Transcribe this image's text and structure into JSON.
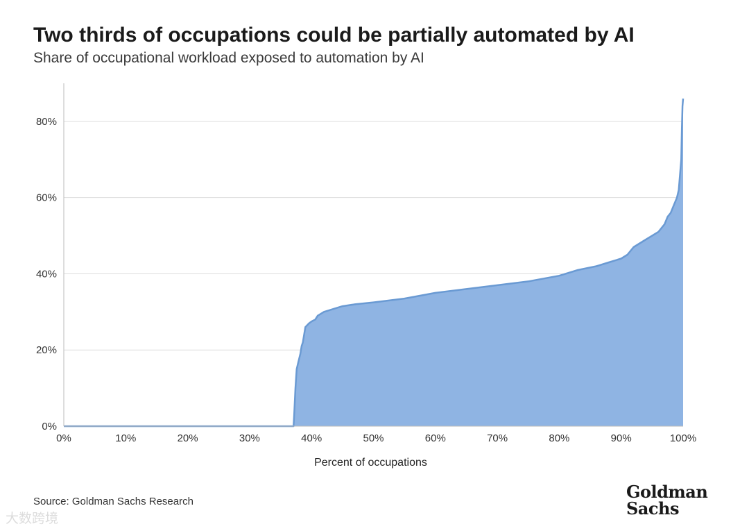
{
  "header": {
    "title": "Two thirds of occupations could be partially automated by AI",
    "subtitle": "Share of occupational workload exposed to automation by AI"
  },
  "footer": {
    "source": "Source: Goldman Sachs Research",
    "logo_line1": "Goldman",
    "logo_line2": "Sachs",
    "watermark": "大数跨境"
  },
  "colors": {
    "area_fill": "#8fb4e3",
    "line": "#6a9ad3",
    "grid": "#dddddd",
    "axis": "#bbbbbb"
  },
  "chart_data": {
    "type": "area",
    "title": "Two thirds of occupations could be partially automated by AI",
    "subtitle": "Share of occupational workload exposed to automation by AI",
    "xlabel": "Percent of occupations",
    "ylabel": "",
    "xlim": [
      0,
      100
    ],
    "ylim": [
      0,
      90
    ],
    "grid": true,
    "x_ticks": [
      0,
      10,
      20,
      30,
      40,
      50,
      60,
      70,
      80,
      90,
      100
    ],
    "x_tick_labels": [
      "0%",
      "10%",
      "20%",
      "30%",
      "40%",
      "50%",
      "60%",
      "70%",
      "80%",
      "90%",
      "100%"
    ],
    "y_ticks": [
      0,
      20,
      40,
      60,
      80
    ],
    "y_tick_labels": [
      "0%",
      "20%",
      "40%",
      "60%",
      "80%"
    ],
    "series": [
      {
        "x": [
          0,
          37.1,
          37.2,
          37.4,
          37.6,
          37.9,
          38.2,
          38.4,
          38.6,
          39.0,
          39.6,
          40.0,
          40.6,
          41.0,
          42.0,
          43.0,
          44.0,
          45.0,
          47.0,
          50.0,
          55.0,
          60.0,
          65.0,
          70.0,
          75.0,
          80.0,
          83.0,
          86.0,
          88.0,
          90.0,
          91.0,
          92.0,
          93.0,
          94.0,
          95.0,
          96.0,
          96.5,
          97.0,
          97.5,
          98.0,
          98.5,
          99.0,
          99.3,
          99.5,
          99.7,
          99.8,
          99.9,
          100.0
        ],
        "y": [
          0,
          0,
          3,
          10,
          15,
          17,
          19,
          21,
          22,
          26,
          27,
          27.5,
          28,
          29,
          30,
          30.5,
          31,
          31.5,
          32,
          32.5,
          33.5,
          35,
          36,
          37,
          38,
          39.5,
          41,
          42,
          43,
          44,
          45,
          47,
          48,
          49,
          50,
          51,
          52,
          53,
          55,
          56,
          58,
          60,
          62,
          66,
          70,
          78,
          84,
          86
        ]
      }
    ]
  }
}
